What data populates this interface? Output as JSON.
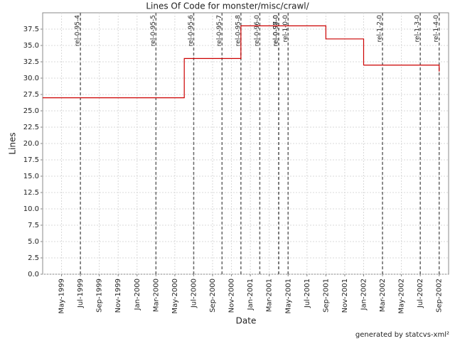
{
  "chart_data": {
    "type": "line",
    "title": "Lines Of Code for monster/misc/crawl/",
    "x_label": "Date",
    "y_label": "Lines",
    "footer": "generated by statcvs-xml²",
    "step": true,
    "grid": true,
    "xlim": [
      "1999-03",
      "2002-10"
    ],
    "xticks": [
      {
        "value": "1999-05",
        "label": "May-1999"
      },
      {
        "value": "1999-07",
        "label": "Jul-1999"
      },
      {
        "value": "1999-09",
        "label": "Sep-1999"
      },
      {
        "value": "1999-11",
        "label": "Nov-1999"
      },
      {
        "value": "2000-01",
        "label": "Jan-2000"
      },
      {
        "value": "2000-03",
        "label": "Mar-2000"
      },
      {
        "value": "2000-05",
        "label": "May-2000"
      },
      {
        "value": "2000-07",
        "label": "Jul-2000"
      },
      {
        "value": "2000-09",
        "label": "Sep-2000"
      },
      {
        "value": "2000-11",
        "label": "Nov-2000"
      },
      {
        "value": "2001-01",
        "label": "Jan-2001"
      },
      {
        "value": "2001-03",
        "label": "Mar-2001"
      },
      {
        "value": "2001-05",
        "label": "May-2001"
      },
      {
        "value": "2001-07",
        "label": "Jul-2001"
      },
      {
        "value": "2001-09",
        "label": "Sep-2001"
      },
      {
        "value": "2001-11",
        "label": "Nov-2001"
      },
      {
        "value": "2002-01",
        "label": "Jan-2002"
      },
      {
        "value": "2002-03",
        "label": "Mar-2002"
      },
      {
        "value": "2002-05",
        "label": "May-2002"
      },
      {
        "value": "2002-07",
        "label": "Jul-2002"
      },
      {
        "value": "2002-09",
        "label": "Sep-2002"
      }
    ],
    "ylim": [
      0,
      40
    ],
    "yticks": [
      {
        "value": 0,
        "label": "0.0"
      },
      2.5,
      {
        "value": 5,
        "label": "5.0"
      },
      7.5,
      {
        "value": 10,
        "label": "10.0"
      },
      12.5,
      {
        "value": 15,
        "label": "15.0"
      },
      17.5,
      {
        "value": 20,
        "label": "20.0"
      },
      22.5,
      {
        "value": 25,
        "label": "25.0"
      },
      27.5,
      {
        "value": 30,
        "label": "30.0"
      },
      32.5,
      {
        "value": 35,
        "label": "35.0"
      },
      37.5
    ],
    "x": [
      "1999-03",
      "2000-06",
      "2000-12",
      "2001-09",
      "2002-01",
      "2002-09",
      "2002-09"
    ],
    "series": [
      {
        "name": "Lines",
        "color": "#cc0000",
        "values": [
          27,
          33,
          38,
          36,
          32,
          32,
          31
        ]
      }
    ],
    "markers": [
      {
        "label": "rel-0-95-4",
        "x": "1999-07"
      },
      {
        "label": "rel-0-95-5",
        "x": "2000-03"
      },
      {
        "label": "rel-0-95-6",
        "x": "2000-07"
      },
      {
        "label": "rel-0-95-7",
        "x": "2000-10"
      },
      {
        "label": "rel-0-95-8",
        "x": "2000-12"
      },
      {
        "label": "rel-0-96-0",
        "x": "2001-02"
      },
      {
        "label": "rel-0-97-0",
        "x": "2001-04"
      },
      {
        "label": "rel-0-98-0",
        "x": "2001-04"
      },
      {
        "label": "rel-1-0-0",
        "x": "2001-05"
      },
      {
        "label": "rel-1-2-0",
        "x": "2002-03"
      },
      {
        "label": "rel-1-3-0",
        "x": "2002-07"
      },
      {
        "label": "rel-1-4-0",
        "x": "2002-09"
      }
    ]
  }
}
